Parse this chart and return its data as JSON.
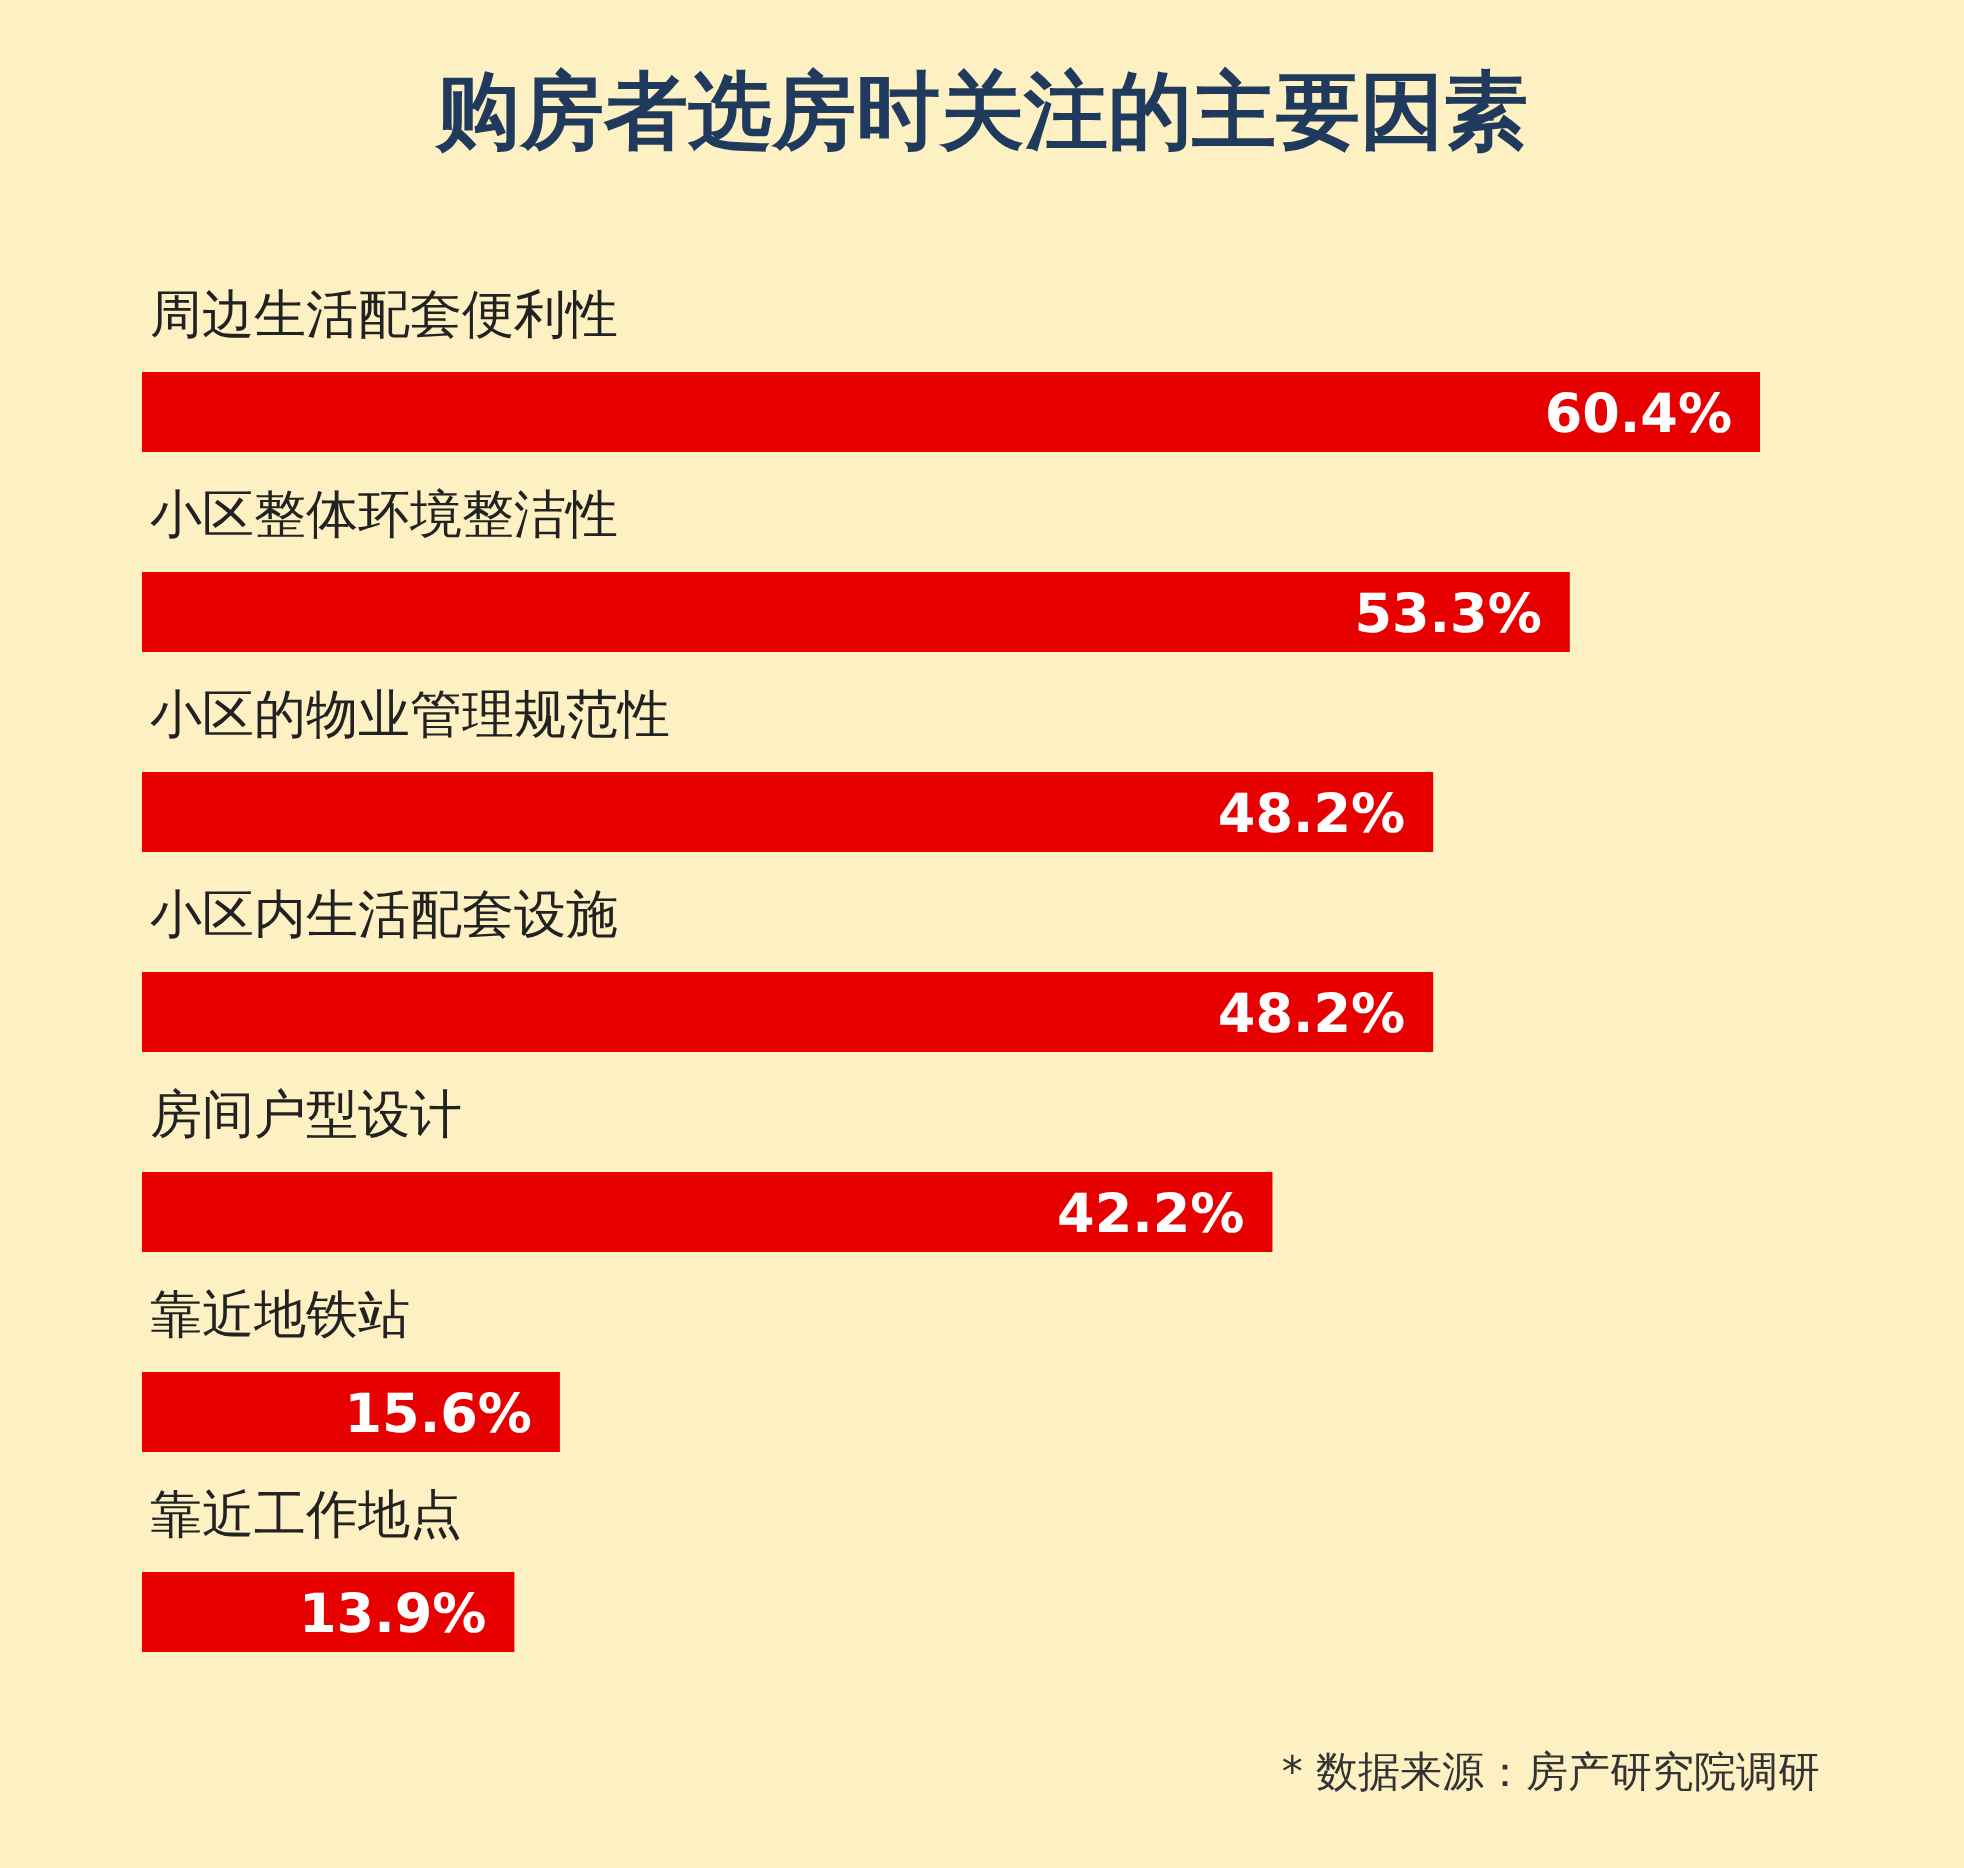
{
  "chart_data": {
    "type": "bar",
    "orientation": "horizontal",
    "title": "购房者选房时关注的主要因素",
    "categories": [
      "周边生活配套便利性",
      "小区整体环境整洁性",
      "小区的物业管理规范性",
      "小区内生活配套设施",
      "房间户型设计",
      "靠近地铁站",
      "靠近工作地点"
    ],
    "values": [
      60.4,
      53.3,
      48.2,
      48.2,
      42.2,
      15.6,
      13.9
    ],
    "value_labels": [
      "60.4%",
      "53.3%",
      "48.2%",
      "48.2%",
      "42.2%",
      "15.6%",
      "13.9%"
    ],
    "color": "#e60000",
    "annotations": [
      "* 数据来源：房产研究院调研"
    ]
  }
}
